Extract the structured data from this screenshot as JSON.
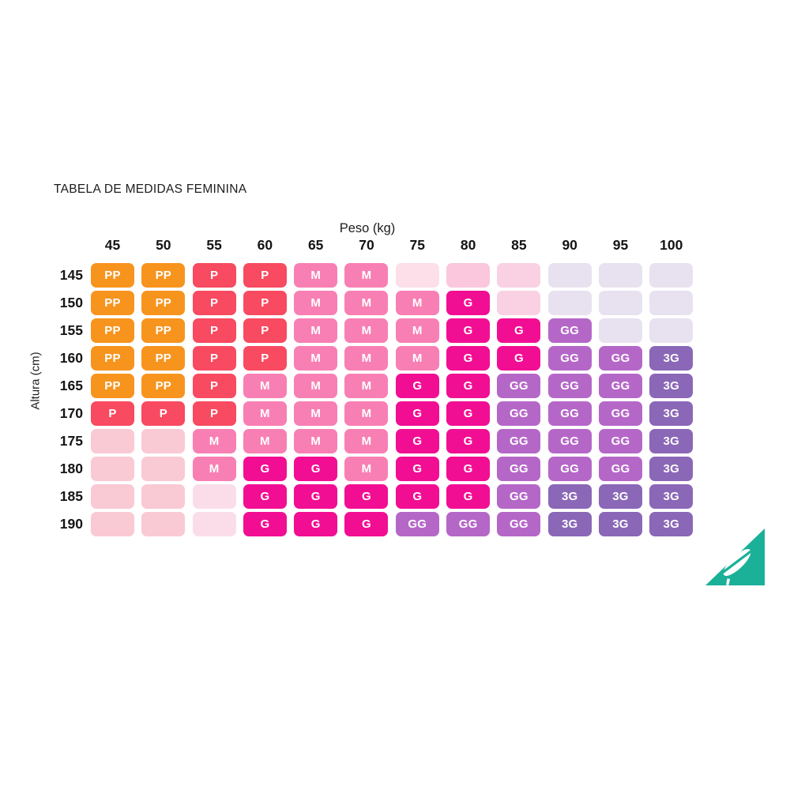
{
  "title": "TABELA DE MEDIDAS FEMININA",
  "axes": {
    "x_label": "Peso (kg)",
    "y_label": "Altura (cm)"
  },
  "columns": [
    "45",
    "50",
    "55",
    "60",
    "65",
    "70",
    "75",
    "80",
    "85",
    "90",
    "95",
    "100"
  ],
  "rows": [
    "145",
    "150",
    "155",
    "160",
    "165",
    "170",
    "175",
    "180",
    "185",
    "190"
  ],
  "grid": [
    [
      "PP",
      "PP",
      "P",
      "P",
      "M",
      "M",
      "e3",
      "e4",
      "e5",
      "e6",
      "e6",
      "e6"
    ],
    [
      "PP",
      "PP",
      "P",
      "P",
      "M",
      "M",
      "M",
      "G",
      "e5",
      "e6",
      "e6",
      "e6"
    ],
    [
      "PP",
      "PP",
      "P",
      "P",
      "M",
      "M",
      "M",
      "G",
      "G",
      "GG",
      "e6",
      "e6"
    ],
    [
      "PP",
      "PP",
      "P",
      "P",
      "M",
      "M",
      "M",
      "G",
      "G",
      "GG",
      "GG",
      "3G"
    ],
    [
      "PP",
      "PP",
      "P",
      "M",
      "M",
      "M",
      "G",
      "G",
      "GG",
      "GG",
      "GG",
      "3G"
    ],
    [
      "P",
      "P",
      "P",
      "M",
      "M",
      "M",
      "G",
      "G",
      "GG",
      "GG",
      "GG",
      "3G"
    ],
    [
      "e1",
      "e1",
      "M",
      "M",
      "M",
      "M",
      "G",
      "G",
      "GG",
      "GG",
      "GG",
      "3G"
    ],
    [
      "e1",
      "e1",
      "M",
      "G",
      "G",
      "M",
      "G",
      "G",
      "GG",
      "GG",
      "GG",
      "3G"
    ],
    [
      "e1",
      "e1",
      "e2",
      "G",
      "G",
      "G",
      "G",
      "G",
      "GG",
      "3G",
      "3G",
      "3G"
    ],
    [
      "e1",
      "e1",
      "e2",
      "G",
      "G",
      "G",
      "GG",
      "GG",
      "GG",
      "3G",
      "3G",
      "3G"
    ]
  ],
  "palette": {
    "PP": "#F7941E",
    "P": "#F84A60",
    "M": "#F87FB3",
    "G": "#F20E93",
    "GG": "#B567C8",
    "3G": "#8A67B7",
    "e1": "#F9C9D4",
    "e2": "#FBDDEA",
    "e3": "#FCDFE8",
    "e4": "#FAC7DC",
    "e5": "#F9D1E2",
    "e6": "#E8E2F0"
  },
  "cell_text_color": "#FFFFFF",
  "header_text_color": "#141414",
  "logo": {
    "name": "feather-logo",
    "triangle_color": "#1BB098",
    "feather_color": "#FFFFFF"
  },
  "chart_data": {
    "type": "heatmap",
    "title": "TABELA DE MEDIDAS FEMININA",
    "xlabel": "Peso (kg)",
    "ylabel": "Altura (cm)",
    "x_categories": [
      45,
      50,
      55,
      60,
      65,
      70,
      75,
      80,
      85,
      90,
      95,
      100
    ],
    "y_categories": [
      145,
      150,
      155,
      160,
      165,
      170,
      175,
      180,
      185,
      190
    ],
    "legend_position": "none",
    "grid_lines": false,
    "values": [
      [
        "PP",
        "PP",
        "P",
        "P",
        "M",
        "M",
        "",
        "",
        "",
        "",
        "",
        ""
      ],
      [
        "PP",
        "PP",
        "P",
        "P",
        "M",
        "M",
        "M",
        "G",
        "",
        "",
        "",
        ""
      ],
      [
        "PP",
        "PP",
        "P",
        "P",
        "M",
        "M",
        "M",
        "G",
        "G",
        "GG",
        "",
        ""
      ],
      [
        "PP",
        "PP",
        "P",
        "P",
        "M",
        "M",
        "M",
        "G",
        "G",
        "GG",
        "GG",
        "3G"
      ],
      [
        "PP",
        "PP",
        "P",
        "M",
        "M",
        "M",
        "G",
        "G",
        "GG",
        "GG",
        "GG",
        "3G"
      ],
      [
        "P",
        "P",
        "P",
        "M",
        "M",
        "M",
        "G",
        "G",
        "GG",
        "GG",
        "GG",
        "3G"
      ],
      [
        "",
        "",
        "M",
        "M",
        "M",
        "M",
        "G",
        "G",
        "GG",
        "GG",
        "GG",
        "3G"
      ],
      [
        "",
        "",
        "M",
        "G",
        "G",
        "M",
        "G",
        "G",
        "GG",
        "GG",
        "GG",
        "3G"
      ],
      [
        "",
        "",
        "",
        "G",
        "G",
        "G",
        "G",
        "G",
        "GG",
        "3G",
        "3G",
        "3G"
      ],
      [
        "",
        "",
        "",
        "G",
        "G",
        "G",
        "GG",
        "GG",
        "GG",
        "3G",
        "3G",
        "3G"
      ]
    ],
    "size_color_map": {
      "PP": "#F7941E",
      "P": "#F84A60",
      "M": "#F87FB3",
      "G": "#F20E93",
      "GG": "#B567C8",
      "3G": "#8A67B7"
    }
  }
}
